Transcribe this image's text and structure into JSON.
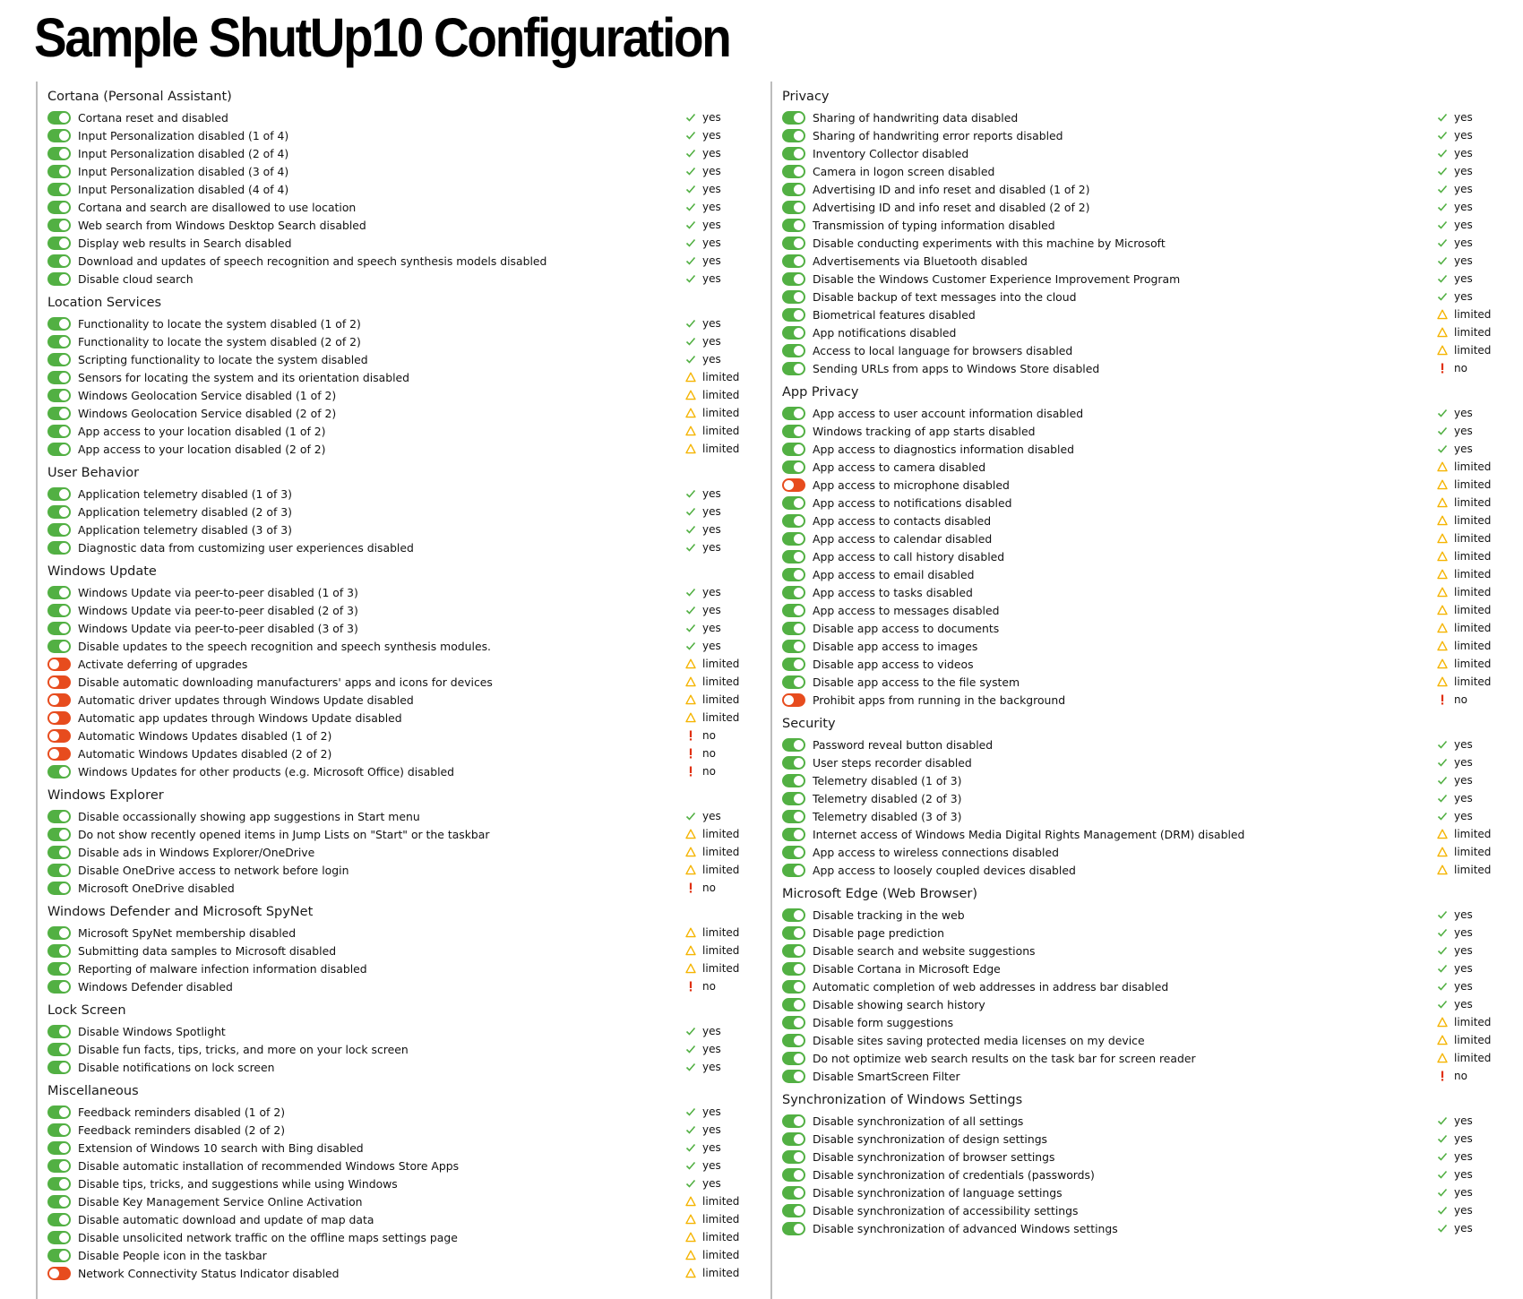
{
  "title": "Sample ShutUp10 Configuration",
  "colors": {
    "toggle_on": "#52b043",
    "toggle_off": "#e74c1e",
    "yes": "#52b043",
    "limited": "#f5b400",
    "no": "#e03010"
  },
  "columns": [
    {
      "sections": [
        {
          "title": "Cortana (Personal Assistant)",
          "items": [
            {
              "label": "Cortana reset and disabled",
              "on": true,
              "status": "yes"
            },
            {
              "label": "Input Personalization disabled (1 of 4)",
              "on": true,
              "status": "yes"
            },
            {
              "label": "Input Personalization disabled (2 of 4)",
              "on": true,
              "status": "yes"
            },
            {
              "label": "Input Personalization disabled (3 of 4)",
              "on": true,
              "status": "yes"
            },
            {
              "label": "Input Personalization disabled (4 of 4)",
              "on": true,
              "status": "yes"
            },
            {
              "label": "Cortana and search are disallowed to use location",
              "on": true,
              "status": "yes"
            },
            {
              "label": "Web search from Windows Desktop Search disabled",
              "on": true,
              "status": "yes"
            },
            {
              "label": "Display web results in Search disabled",
              "on": true,
              "status": "yes"
            },
            {
              "label": "Download and updates of speech recognition and speech synthesis models disabled",
              "on": true,
              "status": "yes"
            },
            {
              "label": "Disable cloud search",
              "on": true,
              "status": "yes"
            }
          ]
        },
        {
          "title": "Location Services",
          "items": [
            {
              "label": "Functionality to locate the system disabled (1 of 2)",
              "on": true,
              "status": "yes"
            },
            {
              "label": "Functionality to locate the system disabled (2 of 2)",
              "on": true,
              "status": "yes"
            },
            {
              "label": "Scripting functionality to locate the system disabled",
              "on": true,
              "status": "yes"
            },
            {
              "label": "Sensors for locating the system and its orientation disabled",
              "on": true,
              "status": "limited"
            },
            {
              "label": "Windows Geolocation Service disabled (1 of 2)",
              "on": true,
              "status": "limited"
            },
            {
              "label": "Windows Geolocation Service disabled (2 of 2)",
              "on": true,
              "status": "limited"
            },
            {
              "label": "App access to your location disabled (1 of 2)",
              "on": true,
              "status": "limited"
            },
            {
              "label": "App access to your location disabled (2 of 2)",
              "on": true,
              "status": "limited"
            }
          ]
        },
        {
          "title": "User Behavior",
          "items": [
            {
              "label": "Application telemetry disabled (1 of 3)",
              "on": true,
              "status": "yes"
            },
            {
              "label": "Application telemetry disabled (2 of 3)",
              "on": true,
              "status": "yes"
            },
            {
              "label": "Application telemetry disabled (3 of 3)",
              "on": true,
              "status": "yes"
            },
            {
              "label": "Diagnostic data from customizing user experiences disabled",
              "on": true,
              "status": "yes"
            }
          ]
        },
        {
          "title": "Windows Update",
          "items": [
            {
              "label": "Windows Update via peer-to-peer disabled (1 of 3)",
              "on": true,
              "status": "yes"
            },
            {
              "label": "Windows Update via peer-to-peer disabled (2 of 3)",
              "on": true,
              "status": "yes"
            },
            {
              "label": "Windows Update via peer-to-peer disabled (3 of 3)",
              "on": true,
              "status": "yes"
            },
            {
              "label": "Disable updates to the speech recognition and speech synthesis modules.",
              "on": true,
              "status": "yes"
            },
            {
              "label": "Activate deferring of upgrades",
              "on": false,
              "status": "limited"
            },
            {
              "label": "Disable automatic downloading manufacturers' apps and icons for devices",
              "on": false,
              "status": "limited"
            },
            {
              "label": "Automatic driver updates through Windows Update disabled",
              "on": false,
              "status": "limited"
            },
            {
              "label": "Automatic app updates through Windows Update disabled",
              "on": false,
              "status": "limited"
            },
            {
              "label": "Automatic Windows Updates disabled (1 of 2)",
              "on": false,
              "status": "no"
            },
            {
              "label": "Automatic Windows Updates disabled (2 of 2)",
              "on": false,
              "status": "no"
            },
            {
              "label": "Windows Updates for other products (e.g. Microsoft Office) disabled",
              "on": true,
              "status": "no"
            }
          ]
        },
        {
          "title": "Windows Explorer",
          "items": [
            {
              "label": "Disable occassionally showing app suggestions in Start menu",
              "on": true,
              "status": "yes"
            },
            {
              "label": "Do not show recently opened items in Jump Lists on \"Start\" or the taskbar",
              "on": true,
              "status": "limited"
            },
            {
              "label": "Disable ads in Windows Explorer/OneDrive",
              "on": true,
              "status": "limited"
            },
            {
              "label": "Disable OneDrive access to network before login",
              "on": true,
              "status": "limited"
            },
            {
              "label": "Microsoft OneDrive disabled",
              "on": true,
              "status": "no"
            }
          ]
        },
        {
          "title": "Windows Defender and Microsoft SpyNet",
          "items": [
            {
              "label": "Microsoft SpyNet membership disabled",
              "on": true,
              "status": "limited"
            },
            {
              "label": "Submitting data samples to Microsoft disabled",
              "on": true,
              "status": "limited"
            },
            {
              "label": "Reporting of malware infection information disabled",
              "on": true,
              "status": "limited"
            },
            {
              "label": "Windows Defender disabled",
              "on": true,
              "status": "no"
            }
          ]
        },
        {
          "title": "Lock Screen",
          "items": [
            {
              "label": "Disable Windows Spotlight",
              "on": true,
              "status": "yes"
            },
            {
              "label": "Disable fun facts, tips, tricks, and more on your lock screen",
              "on": true,
              "status": "yes"
            },
            {
              "label": "Disable notifications on lock screen",
              "on": true,
              "status": "yes"
            }
          ]
        },
        {
          "title": "Miscellaneous",
          "items": [
            {
              "label": "Feedback reminders disabled (1 of 2)",
              "on": true,
              "status": "yes"
            },
            {
              "label": "Feedback reminders disabled (2 of 2)",
              "on": true,
              "status": "yes"
            },
            {
              "label": "Extension of Windows 10 search with Bing disabled",
              "on": true,
              "status": "yes"
            },
            {
              "label": "Disable automatic installation of recommended Windows Store Apps",
              "on": true,
              "status": "yes"
            },
            {
              "label": "Disable tips, tricks, and suggestions while using Windows",
              "on": true,
              "status": "yes"
            },
            {
              "label": "Disable Key Management Service Online Activation",
              "on": true,
              "status": "limited"
            },
            {
              "label": "Disable automatic download and update of map data",
              "on": true,
              "status": "limited"
            },
            {
              "label": "Disable unsolicited network traffic on the offline maps settings page",
              "on": true,
              "status": "limited"
            },
            {
              "label": "Disable People icon in the taskbar",
              "on": true,
              "status": "limited"
            },
            {
              "label": "Network Connectivity Status Indicator disabled",
              "on": false,
              "status": "limited"
            }
          ]
        }
      ]
    },
    {
      "sections": [
        {
          "title": "Privacy",
          "items": [
            {
              "label": "Sharing of handwriting data disabled",
              "on": true,
              "status": "yes"
            },
            {
              "label": "Sharing of handwriting error reports disabled",
              "on": true,
              "status": "yes"
            },
            {
              "label": "Inventory Collector disabled",
              "on": true,
              "status": "yes"
            },
            {
              "label": "Camera in logon screen disabled",
              "on": true,
              "status": "yes"
            },
            {
              "label": "Advertising ID and info reset and disabled (1 of 2)",
              "on": true,
              "status": "yes"
            },
            {
              "label": "Advertising ID and info reset and disabled (2 of 2)",
              "on": true,
              "status": "yes"
            },
            {
              "label": "Transmission of typing information disabled",
              "on": true,
              "status": "yes"
            },
            {
              "label": "Disable conducting experiments with this machine by Microsoft",
              "on": true,
              "status": "yes"
            },
            {
              "label": "Advertisements via Bluetooth disabled",
              "on": true,
              "status": "yes"
            },
            {
              "label": "Disable the Windows Customer Experience Improvement Program",
              "on": true,
              "status": "yes"
            },
            {
              "label": "Disable backup of text messages into the cloud",
              "on": true,
              "status": "yes"
            },
            {
              "label": "Biometrical features disabled",
              "on": true,
              "status": "limited"
            },
            {
              "label": "App notifications disabled",
              "on": true,
              "status": "limited"
            },
            {
              "label": "Access to local language for browsers disabled",
              "on": true,
              "status": "limited"
            },
            {
              "label": "Sending URLs from apps to Windows Store disabled",
              "on": true,
              "status": "no"
            }
          ]
        },
        {
          "title": "App Privacy",
          "items": [
            {
              "label": "App access to user account information disabled",
              "on": true,
              "status": "yes"
            },
            {
              "label": "Windows tracking of app starts disabled",
              "on": true,
              "status": "yes"
            },
            {
              "label": "App access to diagnostics information disabled",
              "on": true,
              "status": "yes"
            },
            {
              "label": "App access to camera disabled",
              "on": true,
              "status": "limited"
            },
            {
              "label": "App access to microphone disabled",
              "on": false,
              "status": "limited"
            },
            {
              "label": "App access to notifications disabled",
              "on": true,
              "status": "limited"
            },
            {
              "label": "App access to contacts disabled",
              "on": true,
              "status": "limited"
            },
            {
              "label": "App access to calendar disabled",
              "on": true,
              "status": "limited"
            },
            {
              "label": "App access to call history disabled",
              "on": true,
              "status": "limited"
            },
            {
              "label": "App access to email disabled",
              "on": true,
              "status": "limited"
            },
            {
              "label": "App access to tasks disabled",
              "on": true,
              "status": "limited"
            },
            {
              "label": "App access to messages disabled",
              "on": true,
              "status": "limited"
            },
            {
              "label": "Disable app access to documents",
              "on": true,
              "status": "limited"
            },
            {
              "label": "Disable app access to images",
              "on": true,
              "status": "limited"
            },
            {
              "label": "Disable app access to videos",
              "on": true,
              "status": "limited"
            },
            {
              "label": "Disable app access to the file system",
              "on": true,
              "status": "limited"
            },
            {
              "label": "Prohibit apps from running in the background",
              "on": false,
              "status": "no"
            }
          ]
        },
        {
          "title": "Security",
          "items": [
            {
              "label": "Password reveal button disabled",
              "on": true,
              "status": "yes"
            },
            {
              "label": "User steps recorder disabled",
              "on": true,
              "status": "yes"
            },
            {
              "label": "Telemetry disabled (1 of 3)",
              "on": true,
              "status": "yes"
            },
            {
              "label": "Telemetry disabled (2 of 3)",
              "on": true,
              "status": "yes"
            },
            {
              "label": "Telemetry disabled (3 of 3)",
              "on": true,
              "status": "yes"
            },
            {
              "label": "Internet access of Windows Media Digital Rights Management (DRM) disabled",
              "on": true,
              "status": "limited"
            },
            {
              "label": "App access to wireless connections disabled",
              "on": true,
              "status": "limited"
            },
            {
              "label": "App access to loosely coupled devices disabled",
              "on": true,
              "status": "limited"
            }
          ]
        },
        {
          "title": "Microsoft Edge (Web Browser)",
          "items": [
            {
              "label": "Disable tracking in the web",
              "on": true,
              "status": "yes"
            },
            {
              "label": "Disable page prediction",
              "on": true,
              "status": "yes"
            },
            {
              "label": "Disable search and website suggestions",
              "on": true,
              "status": "yes"
            },
            {
              "label": "Disable Cortana in Microsoft Edge",
              "on": true,
              "status": "yes"
            },
            {
              "label": "Automatic completion of web addresses in address bar disabled",
              "on": true,
              "status": "yes"
            },
            {
              "label": "Disable showing search history",
              "on": true,
              "status": "yes"
            },
            {
              "label": "Disable form suggestions",
              "on": true,
              "status": "limited"
            },
            {
              "label": "Disable sites saving protected media licenses on my device",
              "on": true,
              "status": "limited"
            },
            {
              "label": "Do not optimize web search results on the task bar for screen reader",
              "on": true,
              "status": "limited"
            },
            {
              "label": "Disable SmartScreen Filter",
              "on": true,
              "status": "no"
            }
          ]
        },
        {
          "title": "Synchronization of Windows Settings",
          "items": [
            {
              "label": "Disable synchronization of all settings",
              "on": true,
              "status": "yes"
            },
            {
              "label": "Disable synchronization of design settings",
              "on": true,
              "status": "yes"
            },
            {
              "label": "Disable synchronization of browser settings",
              "on": true,
              "status": "yes"
            },
            {
              "label": "Disable synchronization of credentials (passwords)",
              "on": true,
              "status": "yes"
            },
            {
              "label": "Disable synchronization of language settings",
              "on": true,
              "status": "yes"
            },
            {
              "label": "Disable synchronization of accessibility settings",
              "on": true,
              "status": "yes"
            },
            {
              "label": "Disable synchronization of advanced Windows settings",
              "on": true,
              "status": "yes"
            }
          ]
        }
      ]
    }
  ]
}
